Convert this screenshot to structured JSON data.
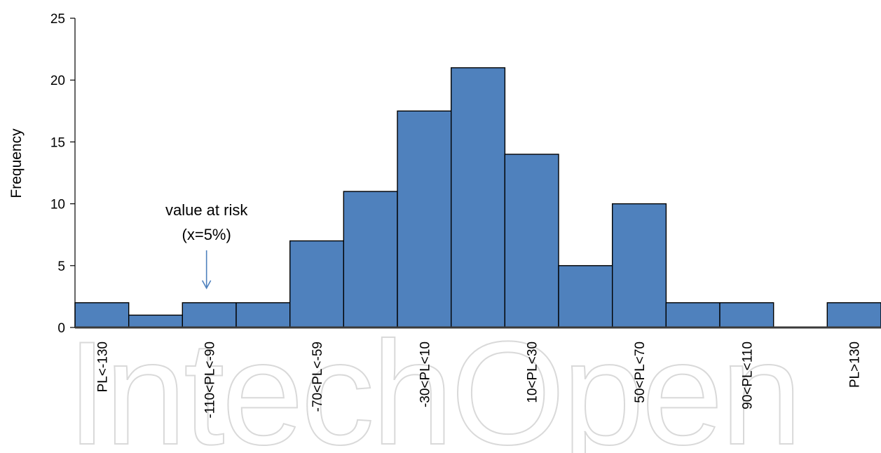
{
  "chart_data": {
    "type": "bar",
    "categories": [
      "PL<-130",
      "",
      "-110<PL<-90",
      "",
      "-70<PL<-59",
      "",
      "-30<PL<10",
      "",
      "10<PL<30",
      "",
      "50<PL<70",
      "",
      "90<PL<110",
      "",
      "PL>130"
    ],
    "values": [
      2,
      1,
      2,
      2,
      7,
      11,
      17.5,
      21,
      14,
      5,
      10,
      2,
      2,
      0,
      2
    ],
    "title": "",
    "xlabel": "",
    "ylabel": "Frequency",
    "ylim": [
      0,
      25
    ],
    "yticks": [
      "0",
      "5",
      "10",
      "15",
      "20",
      "25"
    ],
    "grid": false,
    "bar_color": "#4f81bd",
    "bar_edge_color": "#000000",
    "annotations": [
      {
        "line1": "value at risk",
        "line2": "(x=5%)",
        "arrow_at_category": 2.5
      }
    ]
  },
  "watermark": "IntechOpen"
}
